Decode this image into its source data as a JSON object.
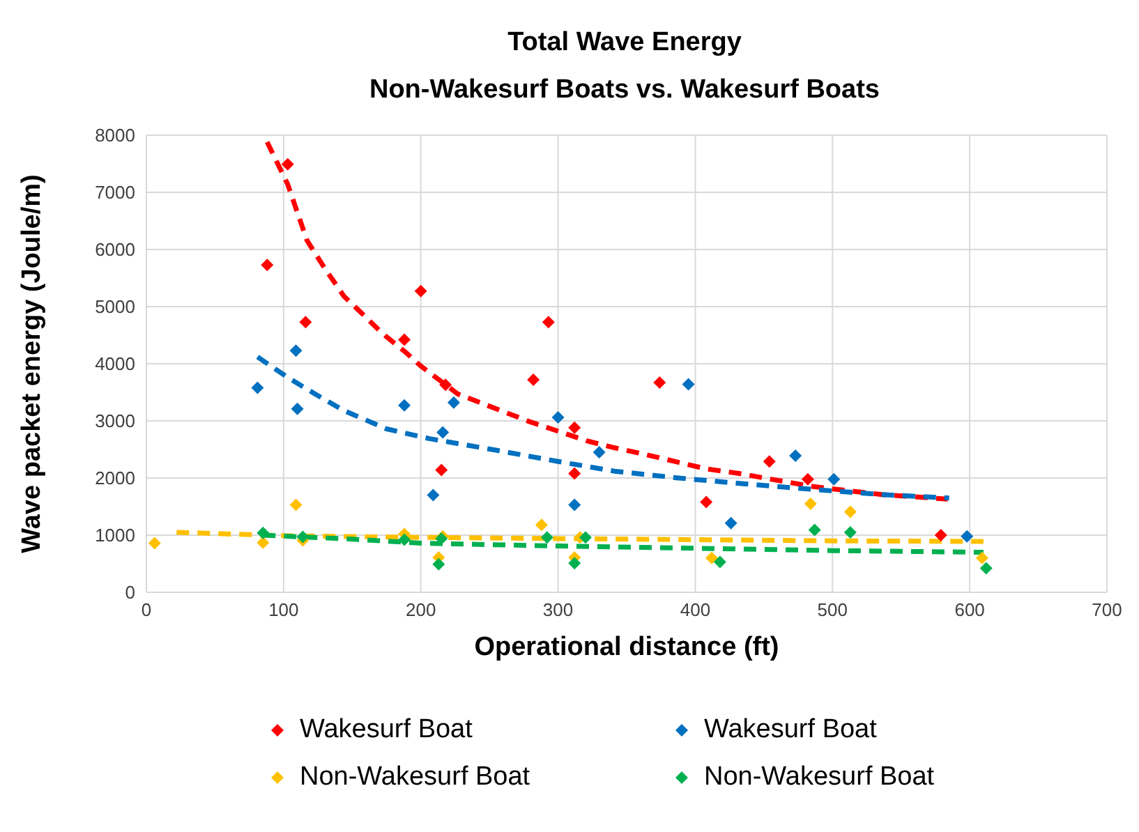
{
  "chart_data": {
    "type": "scatter",
    "title": "Total Wave Energy",
    "subtitle": "Non-Wakesurf Boats vs. Wakesurf Boats",
    "xlabel": "Operational distance (ft)",
    "ylabel": "Wave packet energy (Joule/m)",
    "xlim": [
      0,
      700
    ],
    "xticks": [
      0,
      100,
      200,
      300,
      400,
      500,
      600,
      700
    ],
    "ylim": [
      0,
      8000
    ],
    "yticks": [
      0,
      1000,
      2000,
      3000,
      4000,
      5000,
      6000,
      7000,
      8000
    ],
    "grid": true,
    "legend": "bottom",
    "marker": "diamond",
    "series": [
      {
        "name": "Wakesurf Boat",
        "color": "#ff0000",
        "x": [
          88,
          103,
          116,
          188,
          200,
          215,
          218,
          282,
          293,
          312,
          312,
          374,
          408,
          454,
          482,
          579
        ],
        "values": [
          5730,
          7490,
          4730,
          4420,
          5270,
          2140,
          3630,
          3720,
          4730,
          2880,
          2080,
          3670,
          1580,
          2290,
          1980,
          1000
        ]
      },
      {
        "name": "Wakesurf Boat",
        "color": "#0070c0",
        "x": [
          81,
          109,
          110,
          188,
          209,
          216,
          224,
          300,
          312,
          330,
          395,
          426,
          473,
          501,
          598
        ],
        "values": [
          3580,
          4230,
          3210,
          3270,
          1700,
          2800,
          3320,
          3060,
          1530,
          2450,
          3640,
          1210,
          2390,
          1980,
          980
        ]
      },
      {
        "name": "Non-Wakesurf Boat",
        "color": "#ffc000",
        "x": [
          6,
          85,
          109,
          114,
          188,
          213,
          216,
          288,
          312,
          316,
          412,
          484,
          513,
          609
        ],
        "values": [
          860,
          870,
          1530,
          910,
          1020,
          610,
          980,
          1180,
          610,
          960,
          600,
          1550,
          1410,
          600
        ]
      },
      {
        "name": "Non-Wakesurf Boat",
        "color": "#00b050",
        "x": [
          85,
          114,
          188,
          213,
          215,
          292,
          312,
          320,
          418,
          487,
          513,
          612
        ],
        "values": [
          1040,
          970,
          920,
          490,
          940,
          960,
          510,
          960,
          530,
          1090,
          1050,
          420
        ]
      },
      {
        "type": "line",
        "color": "#ff0000",
        "line_style": "dashed",
        "marker": "none",
        "x": [
          88,
          103,
          117,
          130,
          144,
          158,
          172,
          189,
          200,
          227,
          254,
          280,
          300,
          321,
          341,
          364,
          385,
          408,
          432,
          455,
          486,
          536,
          584
        ],
        "values": [
          7880,
          7140,
          6160,
          5670,
          5180,
          4860,
          4530,
          4200,
          3960,
          3470,
          3220,
          2980,
          2820,
          2650,
          2530,
          2410,
          2290,
          2160,
          2080,
          1980,
          1850,
          1710,
          1630
        ]
      },
      {
        "type": "line",
        "color": "#0070c0",
        "line_style": "dashed",
        "marker": "none",
        "x": [
          81,
          103,
          123,
          144,
          175,
          206,
          254,
          300,
          341,
          388,
          435,
          486,
          536,
          585
        ],
        "values": [
          4120,
          3760,
          3470,
          3180,
          2860,
          2690,
          2490,
          2290,
          2120,
          2000,
          1900,
          1800,
          1710,
          1650
        ]
      },
      {
        "type": "line",
        "color": "#ffc000",
        "line_style": "dashed",
        "marker": "none",
        "x": [
          22,
          100,
          200,
          300,
          400,
          500,
          610
        ],
        "values": [
          1050,
          990,
          960,
          940,
          920,
          900,
          890
        ]
      },
      {
        "type": "line",
        "color": "#00b050",
        "line_style": "dashed",
        "marker": "none",
        "x": [
          85,
          150,
          200,
          300,
          400,
          500,
          610
        ],
        "values": [
          1000,
          930,
          860,
          810,
          770,
          730,
          700
        ]
      }
    ]
  }
}
